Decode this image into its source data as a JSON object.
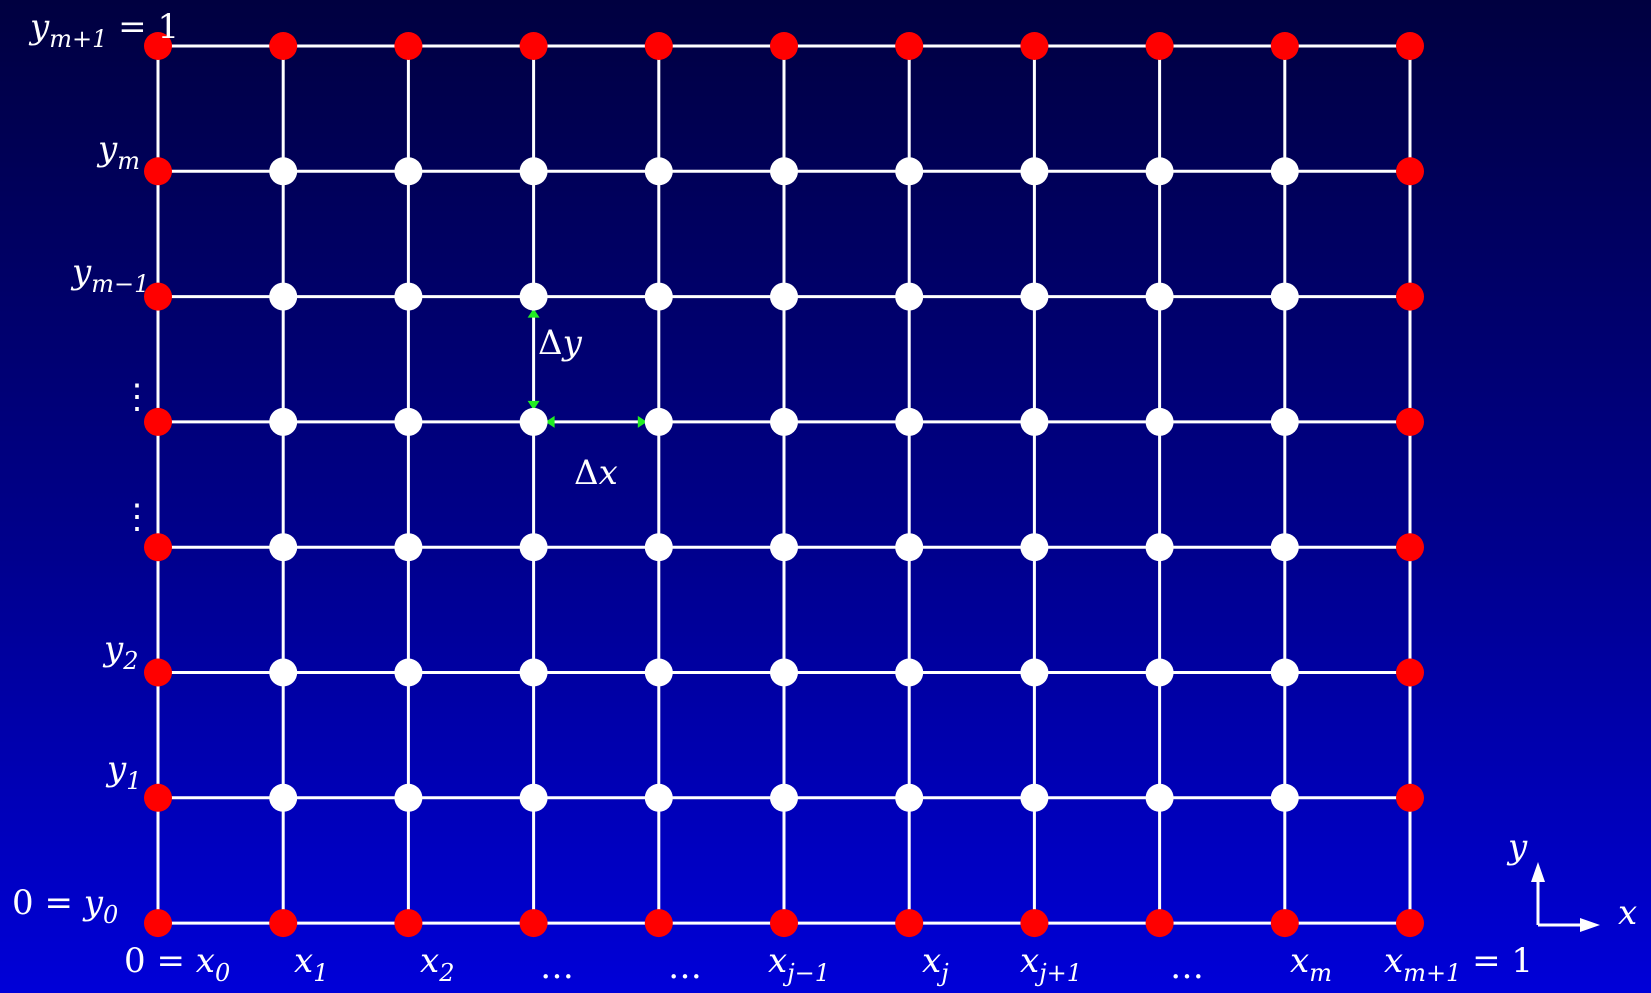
{
  "grid": {
    "columns": 11,
    "rows": 8,
    "line_color": "#ffffff",
    "boundary_node_color": "#ff0000",
    "interior_node_color": "#ffffff",
    "spacing_marker_color": "#22ee22"
  },
  "labels": {
    "y_top": {
      "base": "y",
      "sub": "m+1",
      "tail": " = 1"
    },
    "y_m": {
      "base": "y",
      "sub": "m"
    },
    "y_m_minus_1": {
      "base": "y",
      "sub": "m−1"
    },
    "y_2": {
      "base": "y",
      "sub": "2"
    },
    "y_1": {
      "base": "y",
      "sub": "1"
    },
    "y_0": {
      "head": "0 = ",
      "base": "y",
      "sub": "0"
    },
    "vdots": "⋮",
    "x_0": {
      "head": "0 = ",
      "base": "x",
      "sub": "0"
    },
    "x_1": {
      "base": "x",
      "sub": "1"
    },
    "x_2": {
      "base": "x",
      "sub": "2"
    },
    "x_dots": "…",
    "x_j_minus_1": {
      "base": "x",
      "sub": "j−1"
    },
    "x_j": {
      "base": "x",
      "sub": "j"
    },
    "x_j_plus_1": {
      "base": "x",
      "sub": "j+1"
    },
    "x_m": {
      "base": "x",
      "sub": "m"
    },
    "x_top": {
      "base": "x",
      "sub": "m+1",
      "tail": " = 1"
    },
    "delta_y": {
      "delta": "Δ",
      "var": "y"
    },
    "delta_x": {
      "delta": "Δ",
      "var": "x"
    },
    "axis_x": "x",
    "axis_y": "y"
  }
}
